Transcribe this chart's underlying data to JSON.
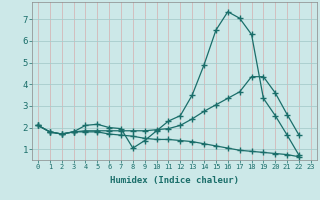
{
  "xlabel": "Humidex (Indice chaleur)",
  "bg_color": "#cce8e8",
  "grid_color_v": "#d4b8b8",
  "grid_color_h": "#a8cccc",
  "line_color": "#1a6e6a",
  "xlim": [
    -0.5,
    23.5
  ],
  "ylim": [
    0.5,
    7.8
  ],
  "xticks": [
    0,
    1,
    2,
    3,
    4,
    5,
    6,
    7,
    8,
    9,
    10,
    11,
    12,
    13,
    14,
    15,
    16,
    17,
    18,
    19,
    20,
    21,
    22,
    23
  ],
  "yticks": [
    1,
    2,
    3,
    4,
    5,
    6,
    7
  ],
  "series": [
    [
      2.1,
      1.8,
      1.7,
      1.8,
      2.1,
      2.15,
      2.0,
      1.95,
      1.05,
      1.4,
      1.85,
      2.3,
      2.55,
      3.5,
      4.9,
      6.5,
      7.35,
      7.05,
      6.3,
      3.35,
      2.55,
      1.65,
      0.72
    ],
    [
      2.1,
      1.8,
      1.7,
      1.8,
      1.85,
      1.85,
      1.85,
      1.85,
      1.85,
      1.85,
      1.9,
      1.95,
      2.1,
      2.4,
      2.75,
      3.05,
      3.35,
      3.65,
      4.35,
      4.35,
      3.6,
      2.6,
      1.65
    ],
    [
      2.1,
      1.8,
      1.7,
      1.8,
      1.8,
      1.8,
      1.7,
      1.65,
      1.6,
      1.5,
      1.45,
      1.45,
      1.4,
      1.35,
      1.25,
      1.15,
      1.05,
      0.95,
      0.9,
      0.85,
      0.8,
      0.75,
      0.65
    ]
  ],
  "x_values": [
    0,
    1,
    2,
    3,
    4,
    5,
    6,
    7,
    8,
    9,
    10,
    11,
    12,
    13,
    14,
    15,
    16,
    17,
    18,
    19,
    20,
    21,
    22
  ]
}
